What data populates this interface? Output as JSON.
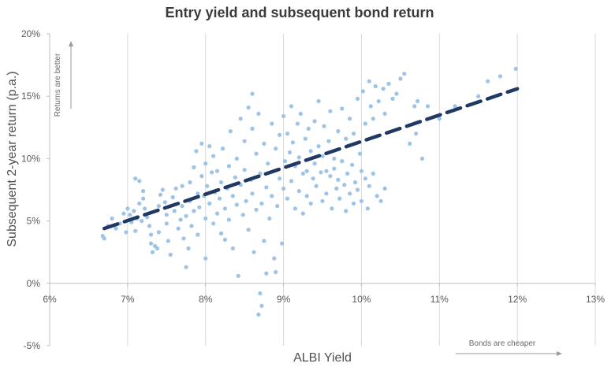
{
  "chart_data": {
    "type": "scatter",
    "title": "Entry yield and subsequent bond return",
    "xlabel": "ALBI Yield",
    "ylabel": "Subsequent 2-year return (p.a.)",
    "xlim": [
      6,
      13
    ],
    "ylim": [
      -5,
      20
    ],
    "x_ticks": [
      6,
      7,
      8,
      9,
      10,
      11,
      12,
      13
    ],
    "y_ticks": [
      -5,
      0,
      5,
      10,
      15,
      20
    ],
    "x_tick_labels": [
      "6%",
      "7%",
      "8%",
      "9%",
      "10%",
      "11%",
      "12%",
      "13%"
    ],
    "y_tick_labels": [
      "-5%",
      "0%",
      "5%",
      "10%",
      "15%",
      "20%"
    ],
    "grid": "vertical",
    "point_color": "#9dc3e6",
    "trend_color": "#1f3864",
    "trendline": {
      "x": [
        6.7,
        12.0
      ],
      "y": [
        4.4,
        15.6
      ],
      "style": "dashed"
    },
    "annotations": {
      "y_arrow": "Returns are better",
      "x_arrow": "Bonds are cheaper"
    },
    "series": [
      {
        "points": [
          [
            6.68,
            3.8
          ],
          [
            6.7,
            3.6
          ],
          [
            6.75,
            4.6
          ],
          [
            6.8,
            5.2
          ],
          [
            6.85,
            4.4
          ],
          [
            6.9,
            4.8
          ],
          [
            6.95,
            5.6
          ],
          [
            6.98,
            4.1
          ],
          [
            7.0,
            6.0
          ],
          [
            7.03,
            5.5
          ],
          [
            7.05,
            4.9
          ],
          [
            7.08,
            5.8
          ],
          [
            7.1,
            4.2
          ],
          [
            7.12,
            5.2
          ],
          [
            7.15,
            6.4
          ],
          [
            7.18,
            5.0
          ],
          [
            7.1,
            8.4
          ],
          [
            7.15,
            8.2
          ],
          [
            7.2,
            7.4
          ],
          [
            7.2,
            6.8
          ],
          [
            7.22,
            6.0
          ],
          [
            7.25,
            5.3
          ],
          [
            7.28,
            4.6
          ],
          [
            7.3,
            3.9
          ],
          [
            7.3,
            3.2
          ],
          [
            7.32,
            2.5
          ],
          [
            7.35,
            3.0
          ],
          [
            7.38,
            2.8
          ],
          [
            7.4,
            4.1
          ],
          [
            7.4,
            6.2
          ],
          [
            7.42,
            7.1
          ],
          [
            7.45,
            7.5
          ],
          [
            7.48,
            6.5
          ],
          [
            7.5,
            5.5
          ],
          [
            7.5,
            4.8
          ],
          [
            7.52,
            3.4
          ],
          [
            7.55,
            2.3
          ],
          [
            7.58,
            6.9
          ],
          [
            7.6,
            5.8
          ],
          [
            7.62,
            7.6
          ],
          [
            7.65,
            4.4
          ],
          [
            7.68,
            5.1
          ],
          [
            7.7,
            6.2
          ],
          [
            7.7,
            7.8
          ],
          [
            7.72,
            3.6
          ],
          [
            7.75,
            5.4
          ],
          [
            7.75,
            1.3
          ],
          [
            7.78,
            2.8
          ],
          [
            7.8,
            6.6
          ],
          [
            7.8,
            8.1
          ],
          [
            7.82,
            4.6
          ],
          [
            7.85,
            9.3
          ],
          [
            7.85,
            5.8
          ],
          [
            7.88,
            10.6
          ],
          [
            7.9,
            7.2
          ],
          [
            7.9,
            3.9
          ],
          [
            7.92,
            6.1
          ],
          [
            7.95,
            11.2
          ],
          [
            7.95,
            8.6
          ],
          [
            7.98,
            7.0
          ],
          [
            8.0,
            5.2
          ],
          [
            8.0,
            9.6
          ],
          [
            8.0,
            2.0
          ],
          [
            8.02,
            7.8
          ],
          [
            8.05,
            11.0
          ],
          [
            8.05,
            6.4
          ],
          [
            8.08,
            8.9
          ],
          [
            8.1,
            4.8
          ],
          [
            8.1,
            10.2
          ],
          [
            8.12,
            7.3
          ],
          [
            8.15,
            5.6
          ],
          [
            8.15,
            9.0
          ],
          [
            8.18,
            6.8
          ],
          [
            8.2,
            4.0
          ],
          [
            8.2,
            8.1
          ],
          [
            8.22,
            10.8
          ],
          [
            8.25,
            6.0
          ],
          [
            8.25,
            3.5
          ],
          [
            8.28,
            7.6
          ],
          [
            8.3,
            9.4
          ],
          [
            8.3,
            5.1
          ],
          [
            8.32,
            12.2
          ],
          [
            8.35,
            7.0
          ],
          [
            8.35,
            2.8
          ],
          [
            8.38,
            8.5
          ],
          [
            8.4,
            6.3
          ],
          [
            8.4,
            10.0
          ],
          [
            8.42,
            0.6
          ],
          [
            8.45,
            13.2
          ],
          [
            8.45,
            7.9
          ],
          [
            8.48,
            5.5
          ],
          [
            8.5,
            11.4
          ],
          [
            8.5,
            9.1
          ],
          [
            8.52,
            6.6
          ],
          [
            8.55,
            14.1
          ],
          [
            8.55,
            4.3
          ],
          [
            8.58,
            8.3
          ],
          [
            8.6,
            15.2
          ],
          [
            8.6,
            12.4
          ],
          [
            8.6,
            7.2
          ],
          [
            8.62,
            2.5
          ],
          [
            8.65,
            10.4
          ],
          [
            8.65,
            5.9
          ],
          [
            8.68,
            13.6
          ],
          [
            8.7,
            8.8
          ],
          [
            8.7,
            -0.8
          ],
          [
            8.72,
            6.4
          ],
          [
            8.72,
            -1.8
          ],
          [
            8.68,
            -2.5
          ],
          [
            8.75,
            11.2
          ],
          [
            8.75,
            3.4
          ],
          [
            8.78,
            7.7
          ],
          [
            8.78,
            0.8
          ],
          [
            8.8,
            9.6
          ],
          [
            8.82,
            5.2
          ],
          [
            8.85,
            12.8
          ],
          [
            8.85,
            7.0
          ],
          [
            8.88,
            2.0
          ],
          [
            8.9,
            10.8
          ],
          [
            8.9,
            0.9
          ],
          [
            8.92,
            6.2
          ],
          [
            8.95,
            8.4
          ],
          [
            8.95,
            11.9
          ],
          [
            8.98,
            3.2
          ],
          [
            9.0,
            13.4
          ],
          [
            9.0,
            7.6
          ],
          [
            9.02,
            9.8
          ],
          [
            9.05,
            12.0
          ],
          [
            9.05,
            6.8
          ],
          [
            9.08,
            10.5
          ],
          [
            9.1,
            14.2
          ],
          [
            9.1,
            8.2
          ],
          [
            9.12,
            11.3
          ],
          [
            9.15,
            6.0
          ],
          [
            9.15,
            9.4
          ],
          [
            9.18,
            12.8
          ],
          [
            9.2,
            7.4
          ],
          [
            9.2,
            10.1
          ],
          [
            9.22,
            13.6
          ],
          [
            9.25,
            8.8
          ],
          [
            9.25,
            5.6
          ],
          [
            9.28,
            11.6
          ],
          [
            9.3,
            9.0
          ],
          [
            9.3,
            7.0
          ],
          [
            9.32,
            12.4
          ],
          [
            9.35,
            10.6
          ],
          [
            9.35,
            6.4
          ],
          [
            9.38,
            8.4
          ],
          [
            9.4,
            13.0
          ],
          [
            9.4,
            9.6
          ],
          [
            9.42,
            7.8
          ],
          [
            9.45,
            11.0
          ],
          [
            9.45,
            14.6
          ],
          [
            9.48,
            8.9
          ],
          [
            9.5,
            6.6
          ],
          [
            9.5,
            10.2
          ],
          [
            9.52,
            12.6
          ],
          [
            9.55,
            9.0
          ],
          [
            9.55,
            7.2
          ],
          [
            9.58,
            11.4
          ],
          [
            9.6,
            8.6
          ],
          [
            9.6,
            13.8
          ],
          [
            9.62,
            6.0
          ],
          [
            9.65,
            10.0
          ],
          [
            9.65,
            9.2
          ],
          [
            9.68,
            7.6
          ],
          [
            9.7,
            12.2
          ],
          [
            9.7,
            8.3
          ],
          [
            9.72,
            6.8
          ],
          [
            9.75,
            14.0
          ],
          [
            9.75,
            9.8
          ],
          [
            9.78,
            7.9
          ],
          [
            9.8,
            11.6
          ],
          [
            9.8,
            5.8
          ],
          [
            9.82,
            8.8
          ],
          [
            9.85,
            13.2
          ],
          [
            9.85,
            7.2
          ],
          [
            9.88,
            9.5
          ],
          [
            9.9,
            6.4
          ],
          [
            9.9,
            12.0
          ],
          [
            9.92,
            8.1
          ],
          [
            9.95,
            14.8
          ],
          [
            9.95,
            7.5
          ],
          [
            9.98,
            10.4
          ],
          [
            10.0,
            6.6
          ],
          [
            10.0,
            9.0
          ],
          [
            10.02,
            15.4
          ],
          [
            10.05,
            8.4
          ],
          [
            10.05,
            12.8
          ],
          [
            10.08,
            6.0
          ],
          [
            10.1,
            16.2
          ],
          [
            10.1,
            7.8
          ],
          [
            10.12,
            14.2
          ],
          [
            10.15,
            13.2
          ],
          [
            10.15,
            8.8
          ],
          [
            10.18,
            15.8
          ],
          [
            10.2,
            7.0
          ],
          [
            10.2,
            11.8
          ],
          [
            10.22,
            14.6
          ],
          [
            10.25,
            6.6
          ],
          [
            10.28,
            15.6
          ],
          [
            10.3,
            13.6
          ],
          [
            10.3,
            7.6
          ],
          [
            10.35,
            16.0
          ],
          [
            10.4,
            14.8
          ],
          [
            10.45,
            15.2
          ],
          [
            10.5,
            16.4
          ],
          [
            10.55,
            16.8
          ],
          [
            10.62,
            11.2
          ],
          [
            10.68,
            14.2
          ],
          [
            10.7,
            12.0
          ],
          [
            10.72,
            14.6
          ],
          [
            10.78,
            10.0
          ],
          [
            10.85,
            14.2
          ],
          [
            11.0,
            13.2
          ],
          [
            11.2,
            14.2
          ],
          [
            11.5,
            15.0
          ],
          [
            11.62,
            16.2
          ],
          [
            11.78,
            16.6
          ],
          [
            11.98,
            17.2
          ]
        ]
      }
    ]
  }
}
